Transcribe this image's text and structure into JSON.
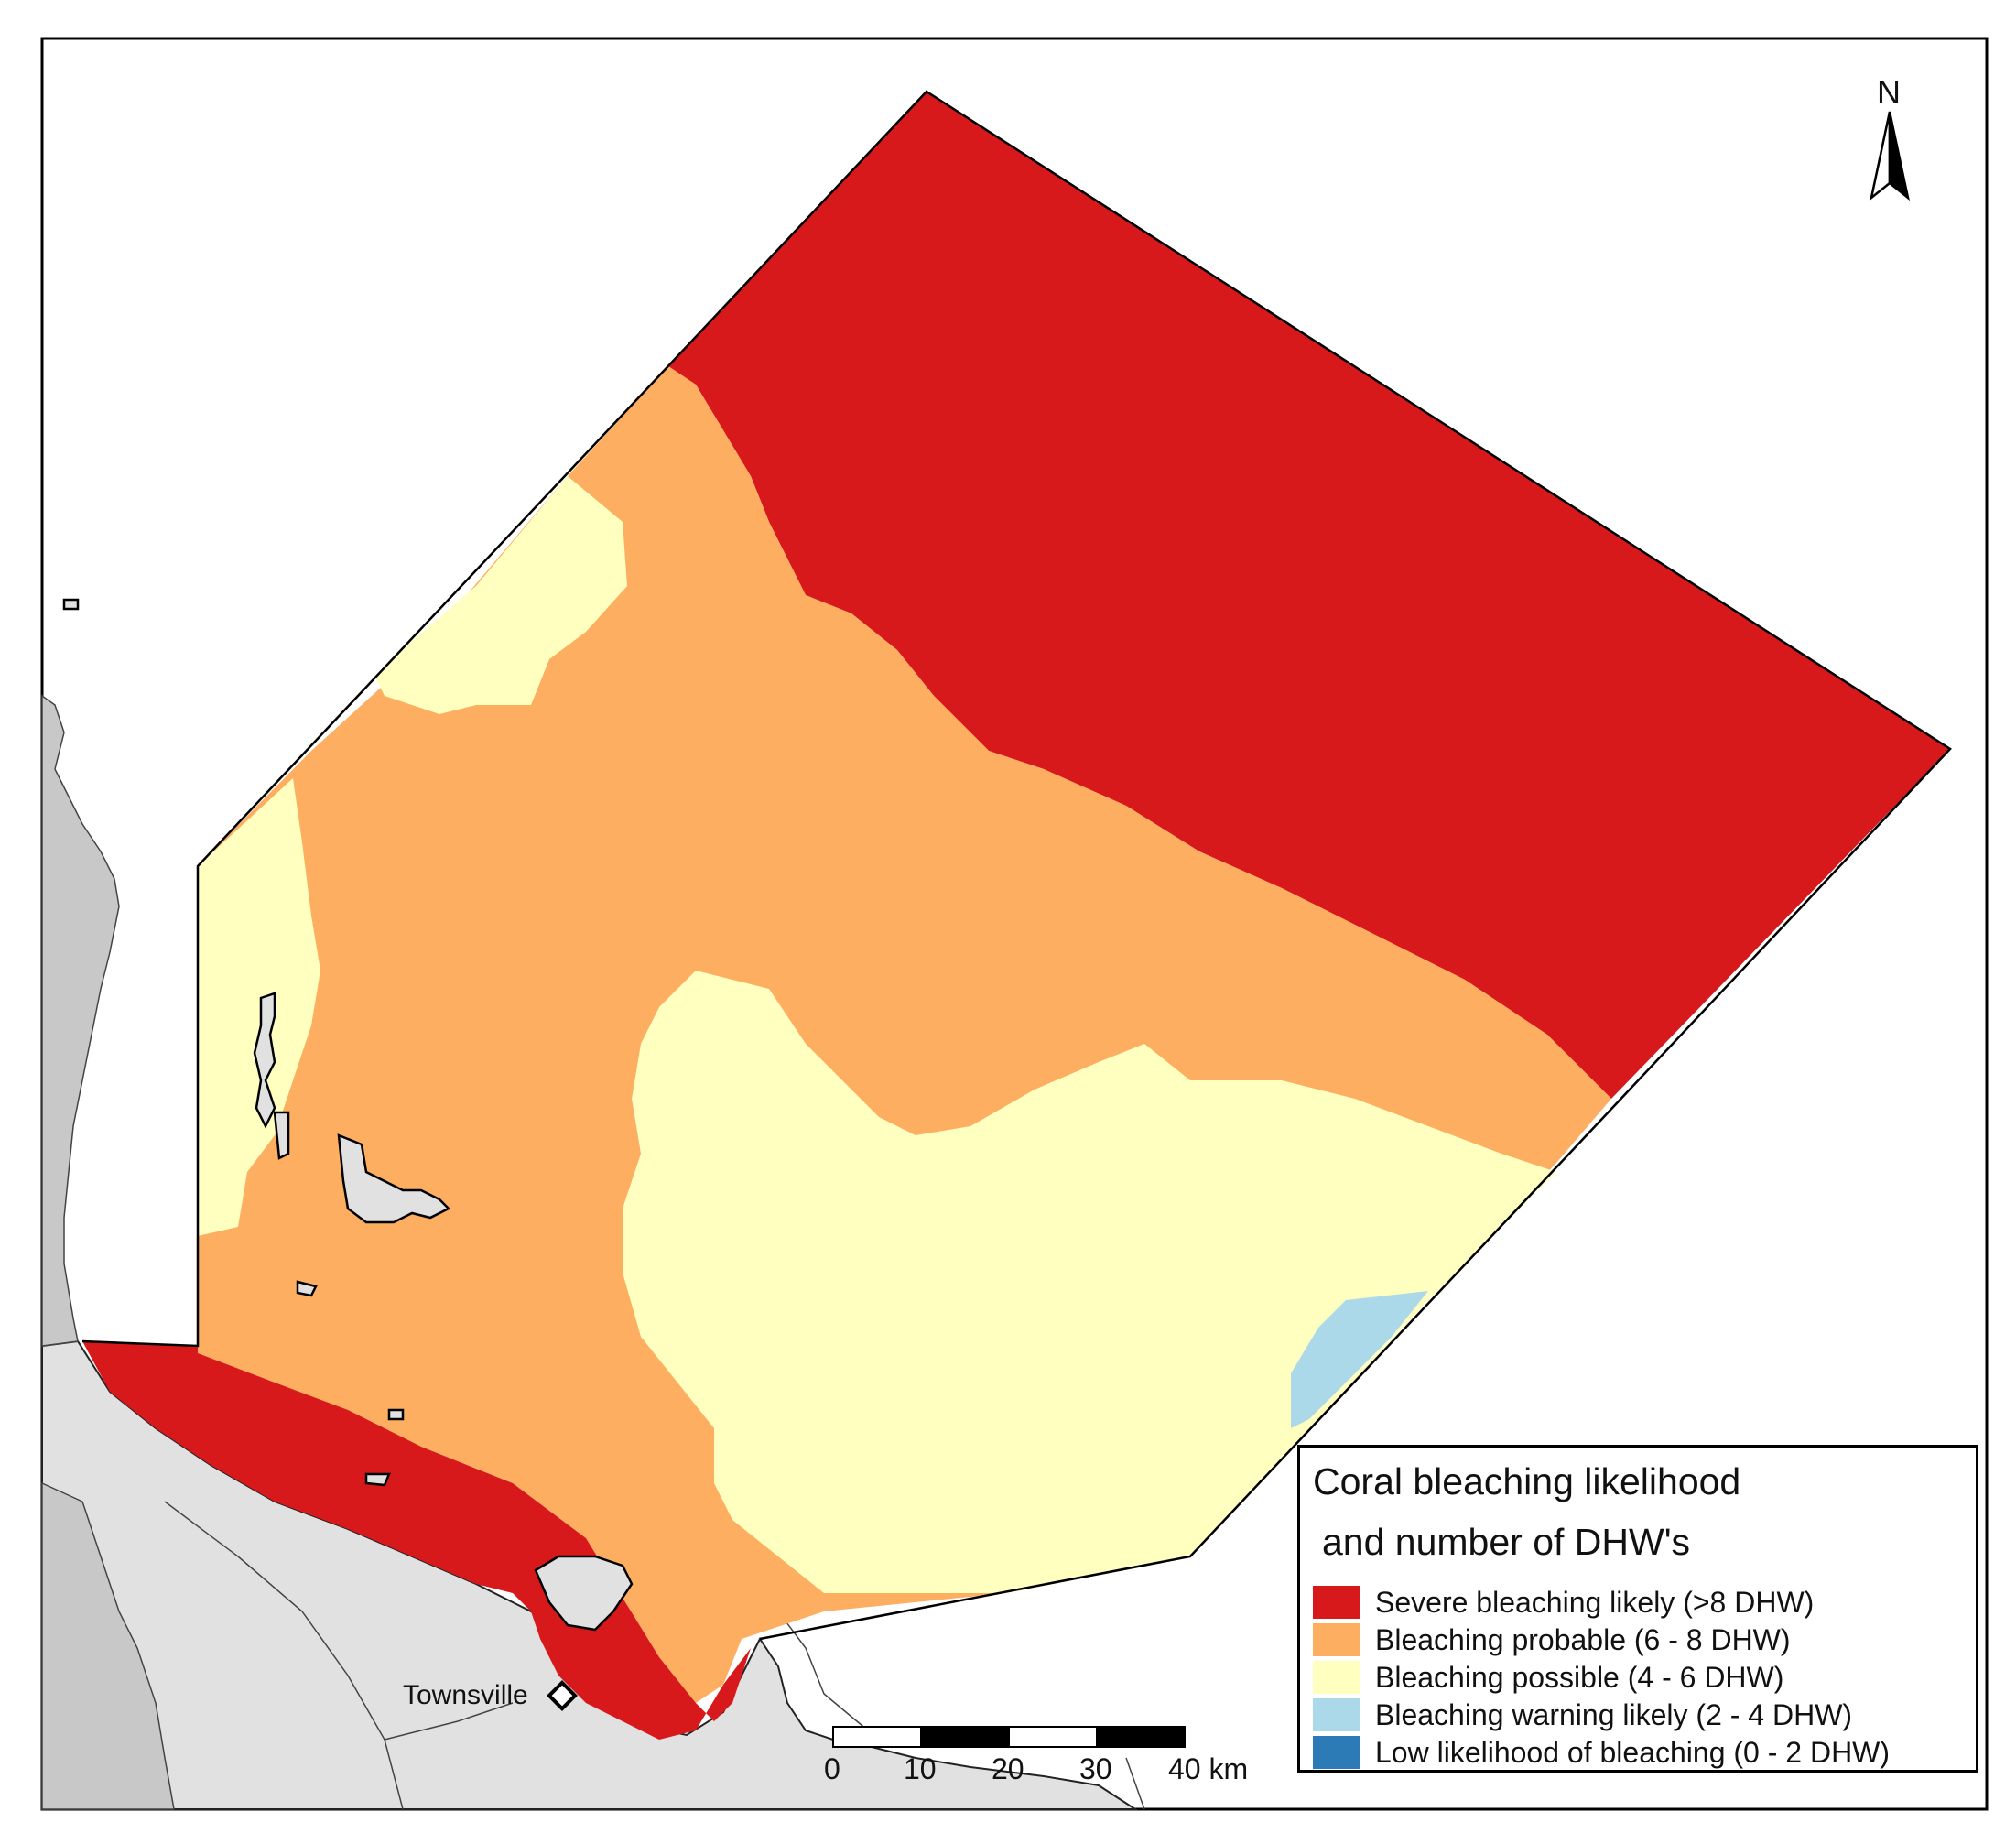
{
  "map": {
    "north_label": "N",
    "place": {
      "name": "Townsville",
      "marker_icon": "diamond-marker-icon"
    }
  },
  "legend": {
    "title_line1": "Coral bleaching likelihood",
    "title_line2": " and number of DHW's",
    "items": [
      {
        "label": "Severe bleaching likely (>8 DHW)",
        "color": "#d7191c"
      },
      {
        "label": "Bleaching probable (6 - 8 DHW)",
        "color": "#fdae61"
      },
      {
        "label": "Bleaching possible (4 - 6 DHW)",
        "color": "#ffffbf"
      },
      {
        "label": "Bleaching warning likely (2 - 4 DHW)",
        "color": "#abd9e9"
      },
      {
        "label": "Low likelihood of bleaching (0 - 2 DHW)",
        "color": "#2c7bb6"
      }
    ]
  },
  "scale_bar": {
    "ticks": [
      "0",
      "10",
      "20",
      "30",
      "40 km"
    ]
  },
  "colors": {
    "land": "#e1e1e1",
    "land_dark": "#c8c8c8",
    "outline": "#000000"
  }
}
